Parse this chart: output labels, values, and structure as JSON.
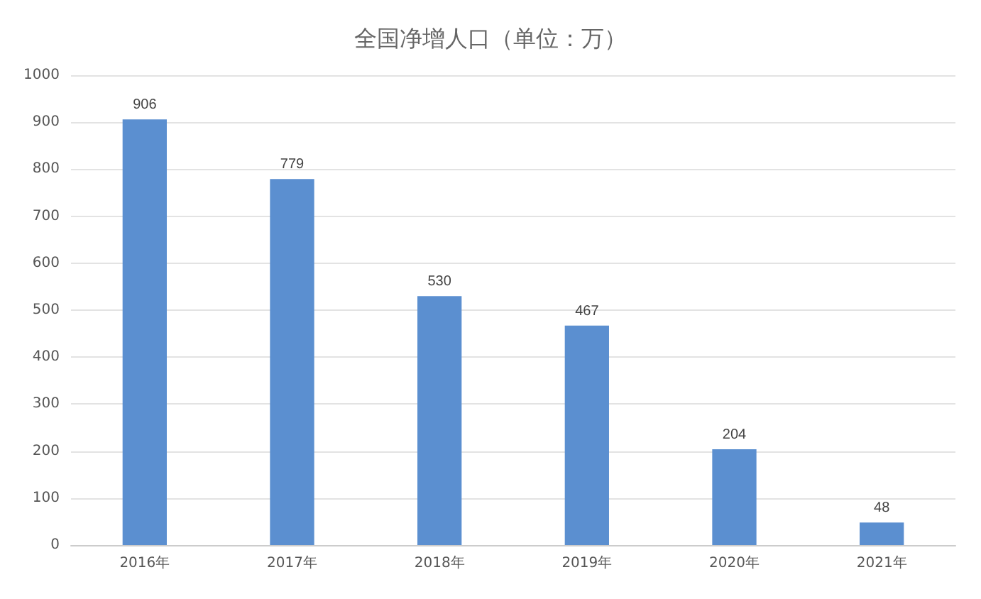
{
  "chart_data": {
    "type": "bar",
    "title": "全国净增人口（单位：万）",
    "categories": [
      "2016年",
      "2017年",
      "2018年",
      "2019年",
      "2020年",
      "2021年"
    ],
    "values": [
      906,
      779,
      530,
      467,
      204,
      48
    ],
    "color": "#5b8fd0",
    "ylim": [
      0,
      1000
    ],
    "yticks": [
      0,
      100,
      200,
      300,
      400,
      500,
      600,
      700,
      800,
      900,
      1000
    ],
    "grid": "y",
    "data_labels": true
  }
}
